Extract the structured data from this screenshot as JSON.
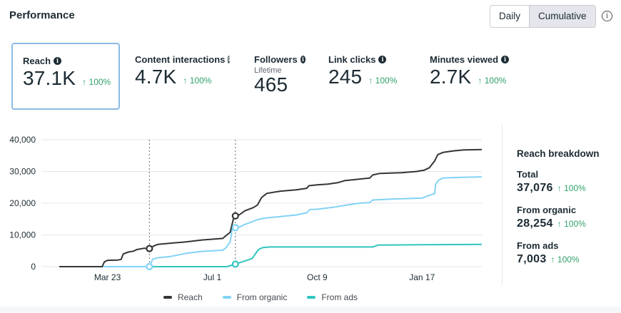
{
  "header": {
    "title": "Performance",
    "toggle": [
      {
        "label": "Daily",
        "active": false
      },
      {
        "label": "Cumulative",
        "active": true
      }
    ],
    "info_icon": "info-circle-icon"
  },
  "metrics": [
    {
      "label": "Reach",
      "value": "37.1K",
      "delta": "100%",
      "selected": true
    },
    {
      "label": "Content interactions",
      "value": "4.7K",
      "delta": "100%",
      "selected": false
    },
    {
      "label": "Followers",
      "sublabel": "Lifetime",
      "value": "465",
      "selected": false
    },
    {
      "label": "Link clicks",
      "value": "245",
      "delta": "100%",
      "selected": false
    },
    {
      "label": "Minutes viewed",
      "value": "2.7K",
      "delta": "100%",
      "selected": false
    }
  ],
  "breakdown": {
    "title": "Reach breakdown",
    "items": [
      {
        "label": "Total",
        "value": "37,076",
        "delta": "100%"
      },
      {
        "label": "From organic",
        "value": "28,254",
        "delta": "100%"
      },
      {
        "label": "From ads",
        "value": "7,003",
        "delta": "100%"
      }
    ]
  },
  "chart_data": {
    "type": "line",
    "title": "",
    "xlabel": "",
    "ylabel": "",
    "x_unit": "days relative to Mar 23",
    "x_range": [
      -46,
      357
    ],
    "x_ticks": [
      {
        "x": 0,
        "label": "Mar 23"
      },
      {
        "x": 100,
        "label": "Jul 1"
      },
      {
        "x": 200,
        "label": "Oct 9"
      },
      {
        "x": 300,
        "label": "Jan 17"
      }
    ],
    "ylim": [
      0,
      40000
    ],
    "y_ticks": [
      {
        "y": 0,
        "label": "0"
      },
      {
        "y": 10000,
        "label": "10,000"
      },
      {
        "y": 20000,
        "label": "20,000"
      },
      {
        "y": 30000,
        "label": "30,000"
      },
      {
        "y": 40000,
        "label": "40,000"
      }
    ],
    "grid": true,
    "legend_position": "bottom",
    "markers": [
      {
        "x": 40,
        "points": [
          {
            "series": "Reach",
            "y": 5700
          },
          {
            "series": "From organic",
            "y": 0
          }
        ]
      },
      {
        "x": 122,
        "points": [
          {
            "series": "Reach",
            "y": 16000
          },
          {
            "series": "From organic",
            "y": 12300
          },
          {
            "series": "From ads",
            "y": 800
          }
        ]
      }
    ],
    "series": [
      {
        "name": "Reach",
        "color": "#333537",
        "points": [
          [
            -46,
            0
          ],
          [
            -5,
            0
          ],
          [
            -3,
            1500
          ],
          [
            0,
            2000
          ],
          [
            10,
            2100
          ],
          [
            13,
            2300
          ],
          [
            15,
            4000
          ],
          [
            20,
            4600
          ],
          [
            25,
            4900
          ],
          [
            28,
            5400
          ],
          [
            35,
            5800
          ],
          [
            40,
            5700
          ],
          [
            44,
            6500
          ],
          [
            48,
            7000
          ],
          [
            60,
            7400
          ],
          [
            75,
            7800
          ],
          [
            90,
            8400
          ],
          [
            110,
            8900
          ],
          [
            112,
            9500
          ],
          [
            117,
            10800
          ],
          [
            120,
            15000
          ],
          [
            122,
            16000
          ],
          [
            126,
            16400
          ],
          [
            131,
            17600
          ],
          [
            139,
            18600
          ],
          [
            143,
            19400
          ],
          [
            147,
            21800
          ],
          [
            152,
            23100
          ],
          [
            165,
            23800
          ],
          [
            180,
            24200
          ],
          [
            190,
            24700
          ],
          [
            192,
            25500
          ],
          [
            200,
            25800
          ],
          [
            210,
            26000
          ],
          [
            220,
            26500
          ],
          [
            226,
            27100
          ],
          [
            240,
            27600
          ],
          [
            250,
            27900
          ],
          [
            253,
            28900
          ],
          [
            260,
            29400
          ],
          [
            280,
            29600
          ],
          [
            295,
            30000
          ],
          [
            298,
            30200
          ],
          [
            302,
            30400
          ],
          [
            307,
            31200
          ],
          [
            312,
            33300
          ],
          [
            315,
            35300
          ],
          [
            320,
            36000
          ],
          [
            330,
            36500
          ],
          [
            340,
            36800
          ],
          [
            357,
            36900
          ]
        ]
      },
      {
        "name": "From organic",
        "color": "#82d3f5",
        "points": [
          [
            -46,
            0
          ],
          [
            40,
            0
          ],
          [
            43,
            2300
          ],
          [
            48,
            2800
          ],
          [
            60,
            3200
          ],
          [
            75,
            4200
          ],
          [
            90,
            4800
          ],
          [
            110,
            5200
          ],
          [
            113,
            6000
          ],
          [
            117,
            7800
          ],
          [
            119,
            12000
          ],
          [
            122,
            12300
          ],
          [
            126,
            12500
          ],
          [
            131,
            13300
          ],
          [
            139,
            14300
          ],
          [
            143,
            14800
          ],
          [
            150,
            15300
          ],
          [
            165,
            15800
          ],
          [
            180,
            16300
          ],
          [
            190,
            17000
          ],
          [
            193,
            18000
          ],
          [
            200,
            18100
          ],
          [
            215,
            18700
          ],
          [
            226,
            19300
          ],
          [
            240,
            20000
          ],
          [
            250,
            20200
          ],
          [
            253,
            21000
          ],
          [
            270,
            21300
          ],
          [
            300,
            21600
          ],
          [
            305,
            22300
          ],
          [
            312,
            23000
          ],
          [
            313,
            26000
          ],
          [
            316,
            27300
          ],
          [
            320,
            27900
          ],
          [
            330,
            28100
          ],
          [
            357,
            28300
          ]
        ]
      },
      {
        "name": "From ads",
        "color": "#2fc6c0",
        "points": [
          [
            -46,
            0
          ],
          [
            114,
            0
          ],
          [
            122,
            800
          ],
          [
            133,
            2000
          ],
          [
            138,
            2600
          ],
          [
            144,
            5400
          ],
          [
            148,
            6000
          ],
          [
            155,
            6200
          ],
          [
            165,
            6200
          ],
          [
            190,
            6200
          ],
          [
            220,
            6200
          ],
          [
            253,
            6200
          ],
          [
            258,
            6800
          ],
          [
            300,
            6900
          ],
          [
            357,
            7000
          ]
        ]
      }
    ]
  }
}
